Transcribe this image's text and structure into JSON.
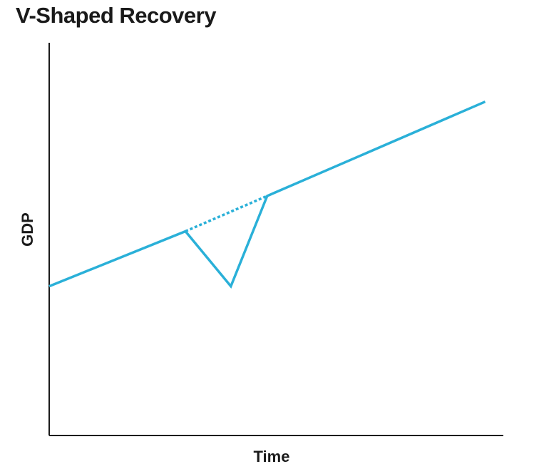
{
  "chart_data": {
    "type": "line",
    "title": "V-Shaped Recovery",
    "xlabel": "Time",
    "ylabel": "GDP",
    "xlim": [
      0,
      100
    ],
    "ylim": [
      0,
      100
    ],
    "grid": false,
    "legend": "none",
    "series": [
      {
        "style": "solid",
        "color": "#2ab0d8",
        "points": [
          {
            "x": 0,
            "y": 38
          },
          {
            "x": 30,
            "y": 52
          },
          {
            "x": 40,
            "y": 38
          },
          {
            "x": 48,
            "y": 61
          },
          {
            "x": 96,
            "y": 85
          }
        ]
      },
      {
        "style": "dotted",
        "color": "#2ab0d8",
        "points": [
          {
            "x": 30,
            "y": 52
          },
          {
            "x": 48,
            "y": 61
          }
        ]
      }
    ]
  },
  "colors": {
    "line": "#2ab0d8",
    "axis": "#1a1a1a",
    "text": "#1a1a1a",
    "background": "#ffffff"
  }
}
